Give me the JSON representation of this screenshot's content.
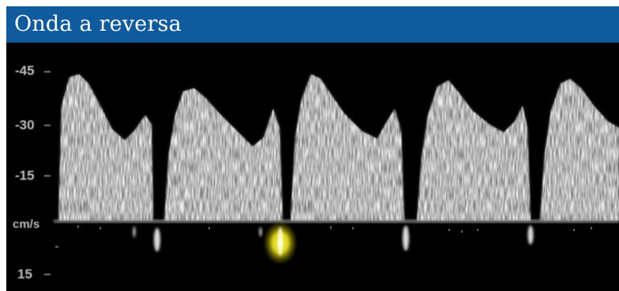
{
  "header": {
    "title": "Onda a reversa",
    "color": "#0f5b9e"
  },
  "scale": {
    "labels": [
      "-45",
      "-30",
      "-15",
      "cm/s",
      "15"
    ]
  },
  "waveform": {
    "color": "#e8e8e8",
    "highlight_color": "#e6e01e"
  }
}
